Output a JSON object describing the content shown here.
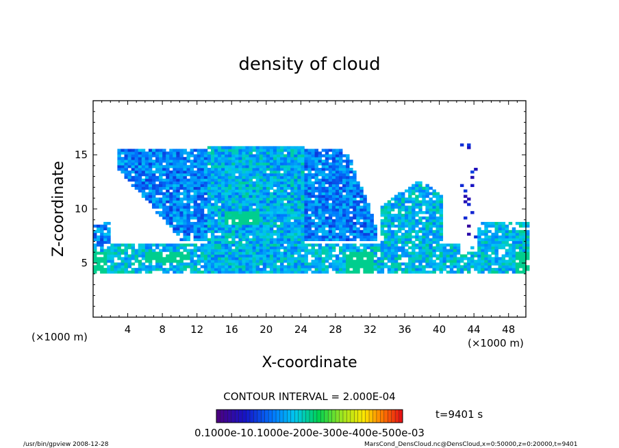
{
  "chart_data": {
    "type": "heatmap",
    "title": "density of cloud",
    "xlabel": "X-coordinate",
    "ylabel": "Z-coordinate",
    "x_unit": "(×1000 m)",
    "y_unit": "(×1000 m)",
    "xlim": [
      0,
      50
    ],
    "ylim": [
      0,
      20
    ],
    "x_ticks": [
      4,
      8,
      12,
      16,
      20,
      24,
      28,
      32,
      36,
      40,
      44,
      48
    ],
    "y_ticks": [
      5,
      10,
      15
    ],
    "contour_interval_text": "CONTOUR INTERVAL = 2.000E-04",
    "time_text": "t=9401 s",
    "colorbar_labels_text": "0.1000e-10.1000e-200e-300e-400e-500e-03",
    "cloud_regions": [
      {
        "name": "main anvil",
        "x": [
          2.5,
          32.5
        ],
        "z": [
          7,
          15.5
        ]
      },
      {
        "name": "central column",
        "x": [
          13,
          24
        ],
        "z": [
          4,
          15.5
        ]
      },
      {
        "name": "low layer",
        "x": [
          0,
          50
        ],
        "z": [
          3.8,
          7
        ]
      },
      {
        "name": "right cell",
        "x": [
          33,
          40
        ],
        "z": [
          4,
          12.5
        ]
      },
      {
        "name": "far right cell",
        "x": [
          44,
          50
        ],
        "z": [
          4,
          8.8
        ]
      }
    ]
  },
  "footer": {
    "left": "/usr/bin/gpview   2008-12-28",
    "right": "MarsCond_DensCloud.nc@DensCloud,x=0:50000,z=0:20000,t=9401"
  }
}
